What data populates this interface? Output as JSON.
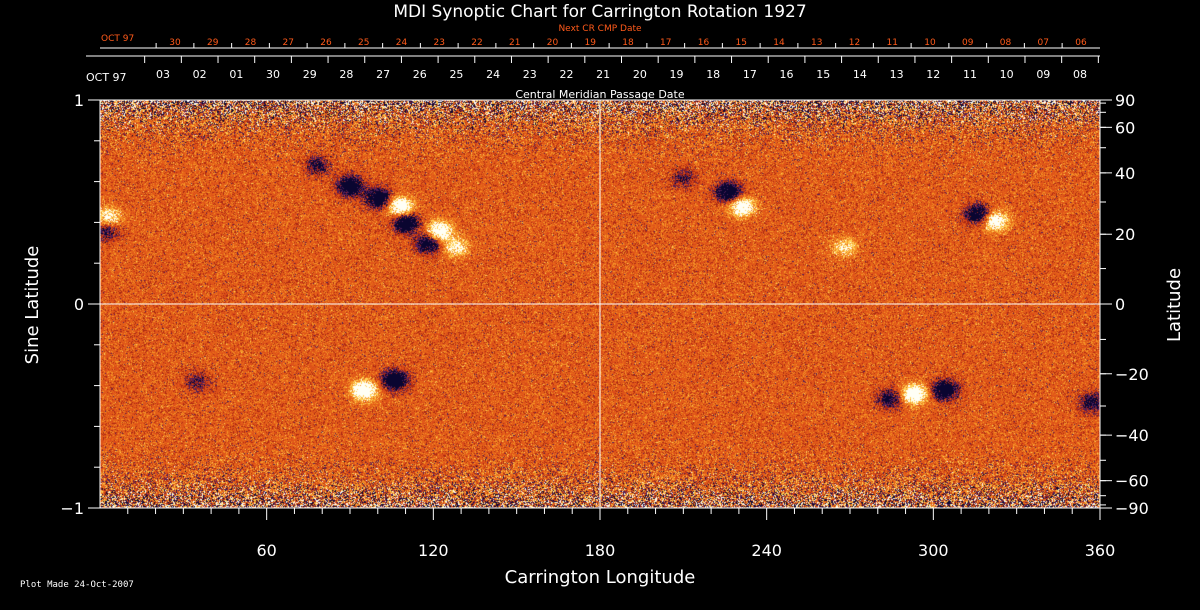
{
  "chart_data": {
    "type": "heatmap",
    "title": "MDI Synoptic Chart for Carrington Rotation 1927",
    "xlabel": "Carrington Longitude",
    "ylabel_left": "Sine Latitude",
    "ylabel_right": "Latitude",
    "top_axis_label": "Central Meridian Passage Date",
    "next_axis_label": "Next CR CMP Date",
    "xlim": [
      0,
      360
    ],
    "ylim": [
      -1,
      1
    ],
    "x_ticks": [
      60,
      120,
      180,
      240,
      300,
      360
    ],
    "y_ticks_left": [
      {
        "v": 1,
        "label": "1"
      },
      {
        "v": 0,
        "label": "0"
      },
      {
        "v": -1,
        "label": "−1"
      }
    ],
    "y_ticks_right": [
      90,
      60,
      40,
      20,
      0,
      -20,
      -40,
      -60,
      -90
    ],
    "cmp_first_label": "OCT 97",
    "cmp_dates": [
      "03",
      "02",
      "01",
      "30",
      "29",
      "28",
      "27",
      "26",
      "25",
      "24",
      "23",
      "22",
      "21",
      "20",
      "19",
      "18",
      "17",
      "16",
      "15",
      "14",
      "13",
      "12",
      "11",
      "10",
      "09",
      "08"
    ],
    "next_first_label": "OCT 97",
    "next_dates": [
      "30",
      "29",
      "28",
      "27",
      "26",
      "25",
      "24",
      "23",
      "22",
      "21",
      "20",
      "19",
      "18",
      "17",
      "16",
      "15",
      "14",
      "13",
      "12",
      "11",
      "10",
      "09",
      "08",
      "07",
      "06"
    ],
    "grid": {
      "vertical_line_at": 180,
      "horizontal_line_at": 0
    },
    "colors": {
      "background": "#000000",
      "field_base": "#e8651a",
      "positive_polarity": "#ffffff",
      "negative_polarity": "#0a0530",
      "next_date_text": "#ff5a1a",
      "axis": "#ffffff"
    },
    "active_regions": [
      {
        "lon": 78,
        "sinlat": 0.68,
        "polarity": "negative",
        "strength": 0.5
      },
      {
        "lon": 90,
        "sinlat": 0.58,
        "polarity": "negative",
        "strength": 1.0
      },
      {
        "lon": 100,
        "sinlat": 0.52,
        "polarity": "negative",
        "strength": 1.0
      },
      {
        "lon": 110,
        "sinlat": 0.4,
        "polarity": "negative",
        "strength": 1.0
      },
      {
        "lon": 118,
        "sinlat": 0.3,
        "polarity": "negative",
        "strength": 0.8
      },
      {
        "lon": 108,
        "sinlat": 0.48,
        "polarity": "positive",
        "strength": 1.0
      },
      {
        "lon": 122,
        "sinlat": 0.36,
        "polarity": "positive",
        "strength": 0.9
      },
      {
        "lon": 128,
        "sinlat": 0.28,
        "polarity": "positive",
        "strength": 0.6
      },
      {
        "lon": 3,
        "sinlat": 0.43,
        "polarity": "positive",
        "strength": 0.6
      },
      {
        "lon": 2,
        "sinlat": 0.36,
        "polarity": "negative",
        "strength": 0.5
      },
      {
        "lon": 226,
        "sinlat": 0.55,
        "polarity": "negative",
        "strength": 1.0
      },
      {
        "lon": 231,
        "sinlat": 0.48,
        "polarity": "positive",
        "strength": 0.9
      },
      {
        "lon": 210,
        "sinlat": 0.62,
        "polarity": "negative",
        "strength": 0.4
      },
      {
        "lon": 316,
        "sinlat": 0.44,
        "polarity": "negative",
        "strength": 0.9
      },
      {
        "lon": 322,
        "sinlat": 0.41,
        "polarity": "positive",
        "strength": 0.9
      },
      {
        "lon": 268,
        "sinlat": 0.28,
        "polarity": "positive",
        "strength": 0.5
      },
      {
        "lon": 95,
        "sinlat": -0.42,
        "polarity": "positive",
        "strength": 1.0
      },
      {
        "lon": 106,
        "sinlat": -0.37,
        "polarity": "negative",
        "strength": 1.0
      },
      {
        "lon": 293,
        "sinlat": -0.44,
        "polarity": "positive",
        "strength": 1.0
      },
      {
        "lon": 304,
        "sinlat": -0.42,
        "polarity": "negative",
        "strength": 1.0
      },
      {
        "lon": 284,
        "sinlat": -0.46,
        "polarity": "negative",
        "strength": 0.6
      },
      {
        "lon": 357,
        "sinlat": -0.48,
        "polarity": "negative",
        "strength": 0.6
      },
      {
        "lon": 35,
        "sinlat": -0.38,
        "polarity": "negative",
        "strength": 0.4
      }
    ]
  },
  "footer": {
    "plot_made": "Plot Made 24-Oct-2007"
  }
}
